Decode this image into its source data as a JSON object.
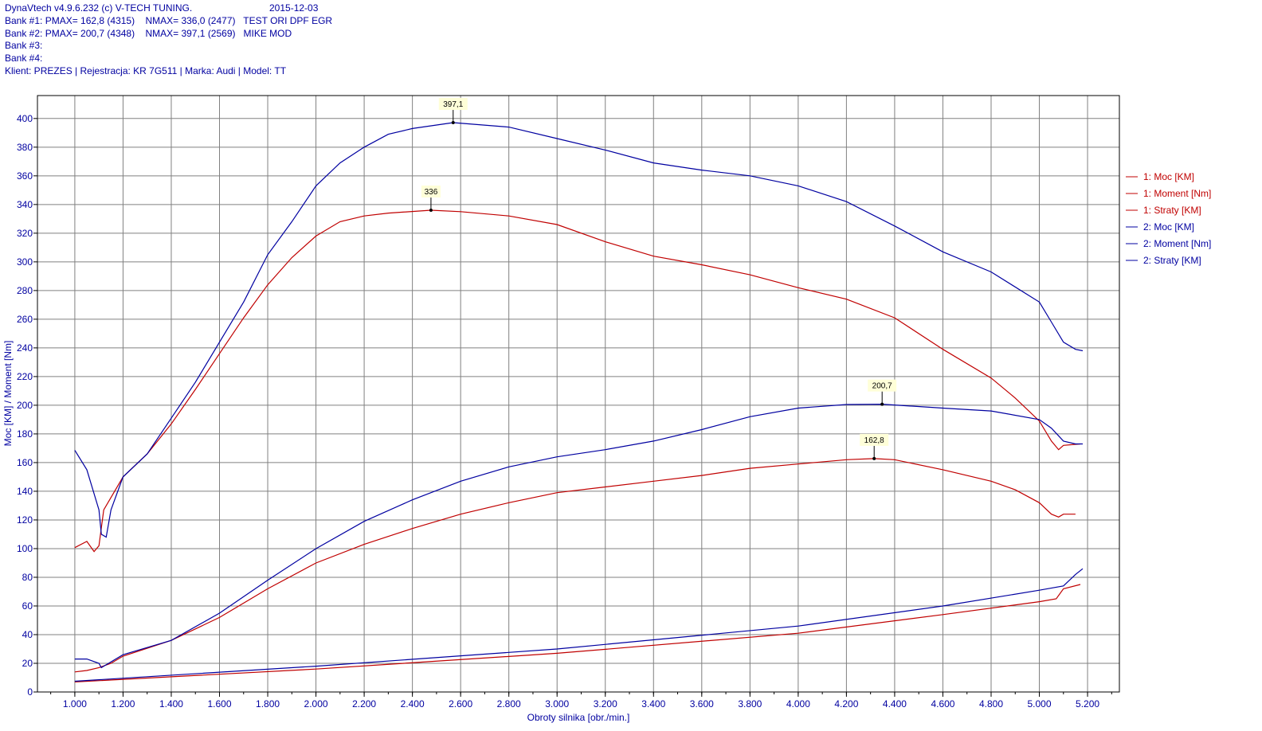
{
  "header": {
    "title": "DynaVtech v4.9.6.232 (c) V-TECH TUNING.",
    "date": "2015-12-03",
    "bank1": "Bank #1: PMAX= 162,8 (4315)    NMAX= 336,0 (2477)   TEST ORI DPF EGR",
    "bank2": "Bank #2: PMAX= 200,7 (4348)    NMAX= 397,1 (2569)   MIKE MOD",
    "bank3": "Bank #3:",
    "bank4": "Bank #4:",
    "client": "Klient: PREZES | Rejestracja: KR 7G511 | Marka: Audi | Model: TT"
  },
  "chart_data": {
    "type": "line",
    "xlabel": "Obroty silnika [obr./min.]",
    "ylabel": "Moc [KM] / Moment [Nm]",
    "xlim": [
      845,
      5332
    ],
    "ylim": [
      0,
      416
    ],
    "xticks": [
      1000,
      1200,
      1400,
      1600,
      1800,
      2000,
      2200,
      2400,
      2600,
      2800,
      3000,
      3200,
      3400,
      3600,
      3800,
      4000,
      4200,
      4400,
      4600,
      4800,
      5000,
      5200
    ],
    "xtick_labels": [
      "1.000",
      "1.200",
      "1.400",
      "1.600",
      "1.800",
      "2.000",
      "2.200",
      "2.400",
      "2.600",
      "2.800",
      "3.000",
      "3.200",
      "3.400",
      "3.600",
      "3.800",
      "4.000",
      "4.200",
      "4.400",
      "4.600",
      "4.800",
      "5.000",
      "5.200"
    ],
    "yticks": [
      0,
      20,
      40,
      60,
      80,
      100,
      120,
      140,
      160,
      180,
      200,
      220,
      240,
      260,
      280,
      300,
      320,
      340,
      360,
      380,
      400
    ],
    "grid": true,
    "legend_position": "right",
    "series": [
      {
        "name": "1: Moc [KM]",
        "color": "#c00000",
        "x": [
          1000,
          1050,
          1100,
          1150,
          1200,
          1400,
          1600,
          1800,
          2000,
          2200,
          2400,
          2600,
          2800,
          3000,
          3200,
          3400,
          3600,
          3800,
          4000,
          4200,
          4315,
          4400,
          4600,
          4800,
          4900,
          5000,
          5050,
          5080,
          5100,
          5150
        ],
        "y": [
          14,
          15,
          17,
          20,
          25,
          36,
          52,
          72,
          90,
          103,
          114,
          124,
          132,
          139,
          143,
          147,
          151,
          156,
          159,
          162,
          162.8,
          162,
          155,
          147,
          141,
          132,
          124,
          122,
          124,
          124
        ]
      },
      {
        "name": "1: Moment [Nm]",
        "color": "#c00000",
        "x": [
          1000,
          1050,
          1080,
          1100,
          1120,
          1200,
          1300,
          1400,
          1500,
          1600,
          1700,
          1800,
          1900,
          2000,
          2100,
          2200,
          2300,
          2477,
          2600,
          2800,
          3000,
          3200,
          3400,
          3600,
          3800,
          4000,
          4200,
          4400,
          4600,
          4800,
          4900,
          5000,
          5050,
          5080,
          5100,
          5170
        ],
        "y": [
          100.7,
          105,
          98,
          102,
          127,
          150,
          166,
          187,
          211,
          236,
          261,
          284,
          303,
          318,
          328,
          332,
          334,
          336,
          335,
          332,
          326,
          314,
          304,
          298,
          291,
          282,
          274,
          261,
          239,
          219,
          205,
          189,
          175,
          169,
          172,
          173
        ]
      },
      {
        "name": "1: Straty [KM]",
        "color": "#c00000",
        "x": [
          1000,
          2000,
          3000,
          4000,
          4600,
          5000,
          5070,
          5100,
          5170
        ],
        "y": [
          7,
          16,
          27,
          41,
          54,
          63,
          65,
          72,
          75
        ]
      },
      {
        "name": "2: Moc [KM]",
        "color": "#0000a0",
        "x": [
          1000,
          1050,
          1100,
          1110,
          1200,
          1400,
          1600,
          1800,
          2000,
          2200,
          2400,
          2600,
          2800,
          3000,
          3200,
          3400,
          3600,
          3800,
          4000,
          4200,
          4348,
          4600,
          4800,
          5000,
          5050,
          5100,
          5150,
          5180
        ],
        "y": [
          23,
          23,
          20,
          17,
          26,
          36,
          55,
          78,
          100,
          119,
          134,
          147,
          157,
          164,
          169,
          175,
          183,
          192,
          198,
          200.5,
          200.7,
          198,
          196,
          190,
          184,
          175,
          173,
          173
        ]
      },
      {
        "name": "2: Moment [Nm]",
        "color": "#0000a0",
        "x": [
          1000,
          1050,
          1100,
          1110,
          1130,
          1150,
          1200,
          1300,
          1400,
          1500,
          1600,
          1700,
          1800,
          1900,
          2000,
          2100,
          2200,
          2300,
          2400,
          2569,
          2800,
          3000,
          3200,
          3400,
          3600,
          3800,
          4000,
          4200,
          4400,
          4600,
          4800,
          5000,
          5050,
          5100,
          5150,
          5180
        ],
        "y": [
          168.6,
          155,
          127,
          110,
          108,
          127,
          150,
          166,
          191,
          216,
          244,
          272,
          305,
          328,
          353,
          369,
          380,
          389,
          393,
          397.1,
          394,
          386,
          378,
          369,
          364,
          360,
          353,
          342,
          325,
          307,
          293,
          272,
          258,
          244,
          239,
          238
        ]
      },
      {
        "name": "2: Straty [KM]",
        "color": "#0000a0",
        "x": [
          1000,
          2000,
          3000,
          4000,
          4600,
          5000,
          5100,
          5150,
          5180
        ],
        "y": [
          7.5,
          18,
          30,
          46,
          60,
          71,
          74,
          82,
          86
        ]
      }
    ],
    "annotations": [
      {
        "text": "397,1",
        "x": 2569,
        "y": 397.1
      },
      {
        "text": "336",
        "x": 2477,
        "y": 336
      },
      {
        "text": "200,7",
        "x": 4348,
        "y": 200.7
      },
      {
        "text": "162,8",
        "x": 4315,
        "y": 162.8
      }
    ]
  }
}
